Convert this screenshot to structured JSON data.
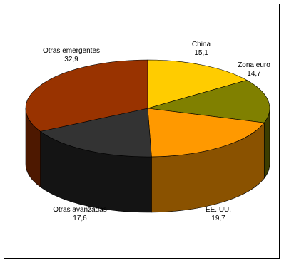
{
  "chart_data": {
    "type": "pie",
    "three_d": true,
    "legend": "none",
    "slices": [
      {
        "label": "China",
        "value": 15.1,
        "display": "15,1",
        "color": "#ffcc00",
        "side": "#8a6e00"
      },
      {
        "label": "Zona euro",
        "value": 14.7,
        "display": "14,7",
        "color": "#808000",
        "side": "#3d3d00"
      },
      {
        "label": "EE. UU.",
        "value": 19.7,
        "display": "19,7",
        "color": "#ff9900",
        "side": "#8a5200"
      },
      {
        "label": "Otras avanzadas",
        "value": 17.6,
        "display": "17,6",
        "color": "#333333",
        "side": "#141414"
      },
      {
        "label": "Otras emergentes",
        "value": 32.9,
        "display": "32,9",
        "color": "#993300",
        "side": "#4d1800"
      }
    ]
  }
}
